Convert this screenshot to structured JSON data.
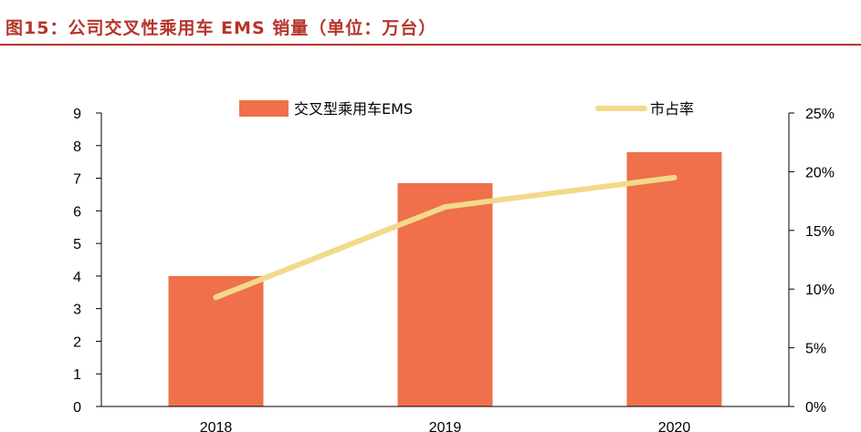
{
  "title": "图15：公司交叉性乘用车 EMS 销量（单位：万台）",
  "colors": {
    "bar": "#ef704a",
    "line": "#f1da8a",
    "title": "#b5342b"
  },
  "chart_data": {
    "type": "bar",
    "categories": [
      "2018",
      "2019",
      "2020"
    ],
    "series": [
      {
        "name": "交叉型乘用车EMS",
        "type": "bar",
        "axis": "left",
        "values": [
          4.0,
          6.85,
          7.8
        ]
      },
      {
        "name": "市占率",
        "type": "line",
        "axis": "right",
        "values": [
          9.3,
          17.0,
          19.5
        ]
      }
    ],
    "ylim": [
      0,
      9
    ],
    "yticks": [
      "0",
      "1",
      "2",
      "3",
      "4",
      "5",
      "6",
      "7",
      "8",
      "9"
    ],
    "y2lim": [
      0,
      25
    ],
    "y2ticks": [
      "0%",
      "5%",
      "10%",
      "15%",
      "20%",
      "25%"
    ],
    "grid": false,
    "legend": "top"
  }
}
